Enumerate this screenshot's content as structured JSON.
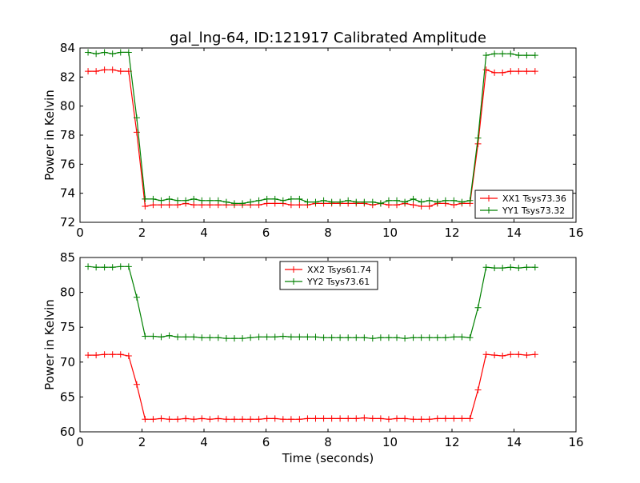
{
  "figure": {
    "title": "gal_lng-64, ID:121917 Calibrated Amplitude",
    "xlabel": "Time (seconds)"
  },
  "chart_data": [
    {
      "type": "line",
      "title": "gal_lng-64, ID:121917 Calibrated Amplitude",
      "xlabel": "",
      "ylabel": "Power in Kelvin",
      "xlim": [
        0,
        16
      ],
      "ylim": [
        72,
        84
      ],
      "xticks": [
        0,
        2,
        4,
        6,
        8,
        10,
        12,
        14,
        16
      ],
      "yticks": [
        72,
        74,
        76,
        78,
        80,
        82,
        84
      ],
      "grid": false,
      "legend_position": "lower-right",
      "x": [
        0.26,
        0.52,
        0.79,
        1.05,
        1.31,
        1.57,
        1.83,
        2.1,
        2.36,
        2.62,
        2.88,
        3.15,
        3.41,
        3.67,
        3.93,
        4.19,
        4.46,
        4.72,
        4.98,
        5.24,
        5.5,
        5.77,
        6.03,
        6.29,
        6.55,
        6.81,
        7.08,
        7.34,
        7.6,
        7.86,
        8.12,
        8.39,
        8.65,
        8.91,
        9.17,
        9.44,
        9.7,
        9.96,
        10.22,
        10.48,
        10.75,
        11.01,
        11.27,
        11.53,
        11.79,
        12.06,
        12.32,
        12.58,
        12.84,
        13.1,
        13.37,
        13.63,
        13.89,
        14.15,
        14.41,
        14.68
      ],
      "series": [
        {
          "name": "XX1 Tsys73.36",
          "color": "#ff0000",
          "values": [
            82.4,
            82.4,
            82.5,
            82.5,
            82.4,
            82.4,
            78.2,
            73.1,
            73.2,
            73.2,
            73.2,
            73.2,
            73.3,
            73.2,
            73.2,
            73.2,
            73.2,
            73.2,
            73.2,
            73.2,
            73.2,
            73.2,
            73.3,
            73.3,
            73.3,
            73.2,
            73.2,
            73.2,
            73.3,
            73.3,
            73.3,
            73.3,
            73.3,
            73.3,
            73.3,
            73.2,
            73.3,
            73.2,
            73.2,
            73.3,
            73.2,
            73.1,
            73.1,
            73.3,
            73.3,
            73.2,
            73.3,
            73.3,
            77.4,
            82.5,
            82.3,
            82.3,
            82.4,
            82.4,
            82.4,
            82.4
          ]
        },
        {
          "name": "YY1 Tsys73.32",
          "color": "#008000",
          "values": [
            83.7,
            83.6,
            83.7,
            83.6,
            83.7,
            83.7,
            79.2,
            73.6,
            73.6,
            73.5,
            73.6,
            73.5,
            73.5,
            73.6,
            73.5,
            73.5,
            73.5,
            73.4,
            73.3,
            73.3,
            73.4,
            73.5,
            73.6,
            73.6,
            73.5,
            73.6,
            73.6,
            73.4,
            73.4,
            73.5,
            73.4,
            73.4,
            73.5,
            73.4,
            73.4,
            73.4,
            73.3,
            73.5,
            73.5,
            73.4,
            73.6,
            73.4,
            73.5,
            73.4,
            73.5,
            73.5,
            73.4,
            73.5,
            77.8,
            83.5,
            83.6,
            83.6,
            83.6,
            83.5,
            83.5,
            83.5
          ]
        }
      ]
    },
    {
      "type": "line",
      "title": "",
      "xlabel": "Time (seconds)",
      "ylabel": "Power in Kelvin",
      "xlim": [
        0,
        16
      ],
      "ylim": [
        60,
        85
      ],
      "xticks": [
        0,
        2,
        4,
        6,
        8,
        10,
        12,
        14,
        16
      ],
      "yticks": [
        60,
        65,
        70,
        75,
        80,
        85
      ],
      "grid": false,
      "legend_position": "upper-center",
      "x": [
        0.26,
        0.52,
        0.79,
        1.05,
        1.31,
        1.57,
        1.83,
        2.1,
        2.36,
        2.62,
        2.88,
        3.15,
        3.41,
        3.67,
        3.93,
        4.19,
        4.46,
        4.72,
        4.98,
        5.24,
        5.5,
        5.77,
        6.03,
        6.29,
        6.55,
        6.81,
        7.08,
        7.34,
        7.6,
        7.86,
        8.12,
        8.39,
        8.65,
        8.91,
        9.17,
        9.44,
        9.7,
        9.96,
        10.22,
        10.48,
        10.75,
        11.01,
        11.27,
        11.53,
        11.79,
        12.06,
        12.32,
        12.58,
        12.84,
        13.1,
        13.37,
        13.63,
        13.89,
        14.15,
        14.41,
        14.68
      ],
      "series": [
        {
          "name": "XX2 Tsys61.74",
          "color": "#ff0000",
          "values": [
            71.0,
            71.0,
            71.1,
            71.1,
            71.1,
            70.9,
            66.8,
            61.8,
            61.8,
            61.9,
            61.8,
            61.8,
            61.9,
            61.8,
            61.9,
            61.8,
            61.9,
            61.8,
            61.8,
            61.8,
            61.8,
            61.8,
            61.9,
            61.9,
            61.8,
            61.8,
            61.8,
            61.9,
            61.9,
            61.9,
            61.9,
            61.9,
            61.9,
            61.9,
            62.0,
            61.9,
            61.9,
            61.8,
            61.9,
            61.9,
            61.8,
            61.8,
            61.8,
            61.9,
            61.9,
            61.9,
            61.9,
            61.9,
            66.0,
            71.1,
            71.0,
            70.9,
            71.1,
            71.1,
            71.0,
            71.1
          ]
        },
        {
          "name": "YY2 Tsys73.61",
          "color": "#008000",
          "values": [
            83.7,
            83.6,
            83.6,
            83.6,
            83.7,
            83.7,
            79.3,
            73.7,
            73.7,
            73.6,
            73.8,
            73.6,
            73.6,
            73.6,
            73.5,
            73.5,
            73.5,
            73.4,
            73.4,
            73.4,
            73.5,
            73.6,
            73.6,
            73.6,
            73.7,
            73.6,
            73.6,
            73.6,
            73.6,
            73.5,
            73.5,
            73.5,
            73.5,
            73.5,
            73.5,
            73.4,
            73.5,
            73.5,
            73.5,
            73.4,
            73.5,
            73.5,
            73.5,
            73.5,
            73.5,
            73.6,
            73.6,
            73.5,
            77.8,
            83.6,
            83.5,
            83.5,
            83.6,
            83.5,
            83.6,
            83.6
          ]
        }
      ]
    }
  ]
}
